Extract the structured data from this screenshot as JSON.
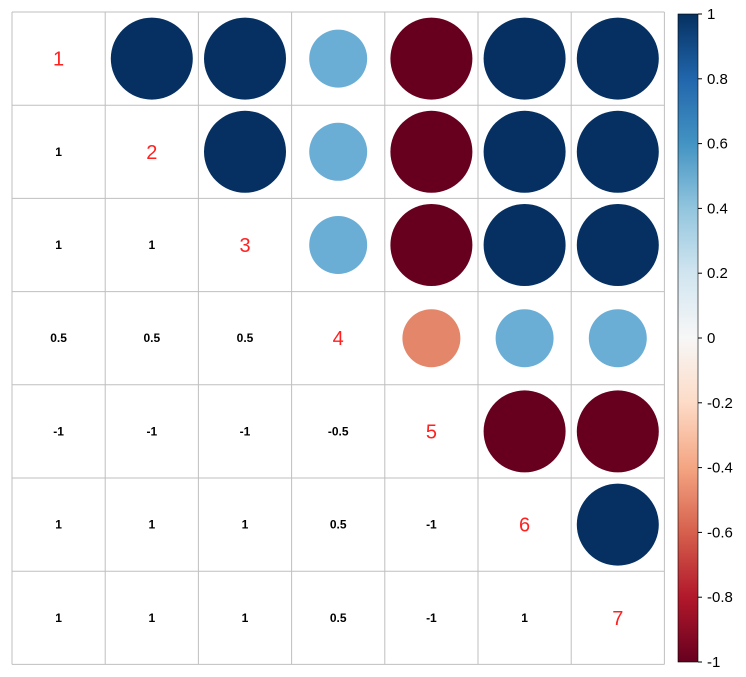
{
  "chart_data": {
    "type": "heatmap",
    "variables": [
      "1",
      "2",
      "3",
      "4",
      "5",
      "6",
      "7"
    ],
    "matrix": [
      [
        1,
        1,
        1,
        0.5,
        -1,
        1,
        1
      ],
      [
        1,
        1,
        1,
        0.5,
        -1,
        1,
        1
      ],
      [
        1,
        1,
        1,
        0.5,
        -1,
        1,
        1
      ],
      [
        0.5,
        0.5,
        0.5,
        1,
        -0.5,
        0.5,
        0.5
      ],
      [
        -1,
        -1,
        -1,
        -0.5,
        1,
        -1,
        -1
      ],
      [
        1,
        1,
        1,
        0.5,
        -1,
        1,
        1
      ],
      [
        1,
        1,
        1,
        0.5,
        -1,
        1,
        1
      ]
    ],
    "upper_method": "circle",
    "lower_method": "number",
    "colorbar": {
      "range": [
        -1,
        1
      ],
      "ticks": [
        "1",
        "0.8",
        "0.6",
        "0.4",
        "0.2",
        "0",
        "-0.2",
        "-0.4",
        "-0.6",
        "-0.8",
        "-1"
      ]
    },
    "colors": {
      "positive_strong": "#053061",
      "positive_mid": "#6aaed6",
      "neutral": "#f7f7f7",
      "negative_mid": "#e3866a",
      "negative_strong": "#67001f",
      "diagonal_label": "#ff2020",
      "grid": "#bfbfbf"
    }
  }
}
